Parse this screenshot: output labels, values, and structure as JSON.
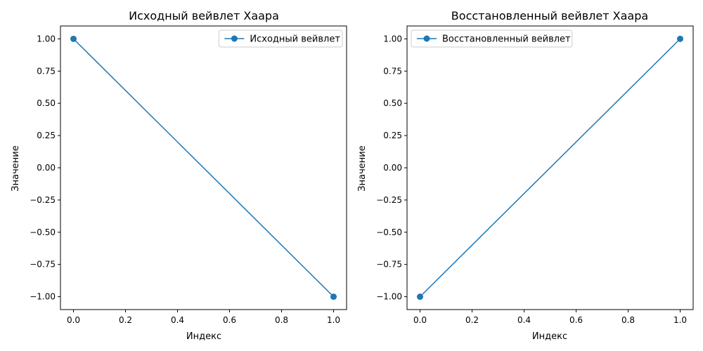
{
  "chart_data": [
    {
      "type": "line",
      "title": "Исходный вейвлет Хаара",
      "xlabel": "Индекс",
      "ylabel": "Значение",
      "xlim": [
        -0.05,
        1.05
      ],
      "ylim": [
        -1.1,
        1.1
      ],
      "xticks": [
        0.0,
        0.2,
        0.4,
        0.6,
        0.8,
        1.0
      ],
      "xtick_labels": [
        "0.0",
        "0.2",
        "0.4",
        "0.6",
        "0.8",
        "1.0"
      ],
      "yticks": [
        1.0,
        0.75,
        0.5,
        0.25,
        0.0,
        -0.25,
        -0.5,
        -0.75,
        -1.0
      ],
      "ytick_labels": [
        "1.00",
        "0.75",
        "0.50",
        "0.25",
        "0.00",
        "−0.25",
        "−0.50",
        "−0.75",
        "−1.00"
      ],
      "grid": false,
      "legend_position": "upper right",
      "series": [
        {
          "name": "Исходный вейвлет",
          "x": [
            0,
            1
          ],
          "y": [
            1.0,
            -1.0
          ],
          "color": "#1f77b4",
          "marker": "circle"
        }
      ]
    },
    {
      "type": "line",
      "title": "Восстановленный вейвлет Хаара",
      "xlabel": "Индекс",
      "ylabel": "Значение",
      "xlim": [
        -0.05,
        1.05
      ],
      "ylim": [
        -1.1,
        1.1
      ],
      "xticks": [
        0.0,
        0.2,
        0.4,
        0.6,
        0.8,
        1.0
      ],
      "xtick_labels": [
        "0.0",
        "0.2",
        "0.4",
        "0.6",
        "0.8",
        "1.0"
      ],
      "yticks": [
        1.0,
        0.75,
        0.5,
        0.25,
        0.0,
        -0.25,
        -0.5,
        -0.75,
        -1.0
      ],
      "ytick_labels": [
        "1.00",
        "0.75",
        "0.50",
        "0.25",
        "0.00",
        "−0.25",
        "−0.50",
        "−0.75",
        "−1.00"
      ],
      "grid": false,
      "legend_position": "upper left",
      "series": [
        {
          "name": "Восстановленный вейвлет",
          "x": [
            0,
            1
          ],
          "y": [
            -1.0,
            1.0
          ],
          "color": "#1f77b4",
          "marker": "circle"
        }
      ]
    }
  ]
}
